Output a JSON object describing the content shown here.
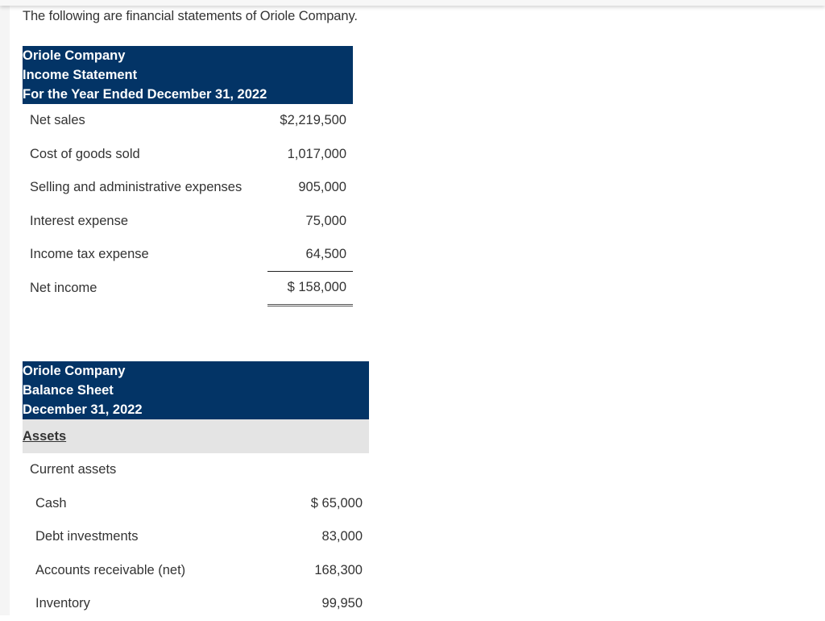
{
  "intro": "The following are financial statements of Oriole Company.",
  "colors": {
    "header_bg": "#033466",
    "header_text": "#ffffff",
    "subheader_bg": "#e4e4e4",
    "body_text": "#333333"
  },
  "income_statement": {
    "header": {
      "company": "Oriole Company",
      "title": "Income Statement",
      "period": "For the Year Ended December 31, 2022"
    },
    "rows": [
      {
        "label": "Net sales",
        "value": "$2,219,500"
      },
      {
        "label": "Cost of goods sold",
        "value": "1,017,000"
      },
      {
        "label": "Selling and administrative expenses",
        "value": "905,000"
      },
      {
        "label": "Interest expense",
        "value": "75,000"
      },
      {
        "label": "Income tax expense",
        "value": "64,500"
      },
      {
        "label": "Net income",
        "value": "$ 158,000"
      }
    ]
  },
  "balance_sheet": {
    "header": {
      "company": "Oriole Company",
      "title": "Balance Sheet",
      "date": "December 31, 2022"
    },
    "section": "Assets",
    "subsection": "Current assets",
    "rows": [
      {
        "label": "Cash",
        "value": "$ 65,000"
      },
      {
        "label": "Debt investments",
        "value": "83,000"
      },
      {
        "label": "Accounts receivable (net)",
        "value": "168,300"
      },
      {
        "label": "Inventory",
        "value": "99,950"
      }
    ]
  }
}
